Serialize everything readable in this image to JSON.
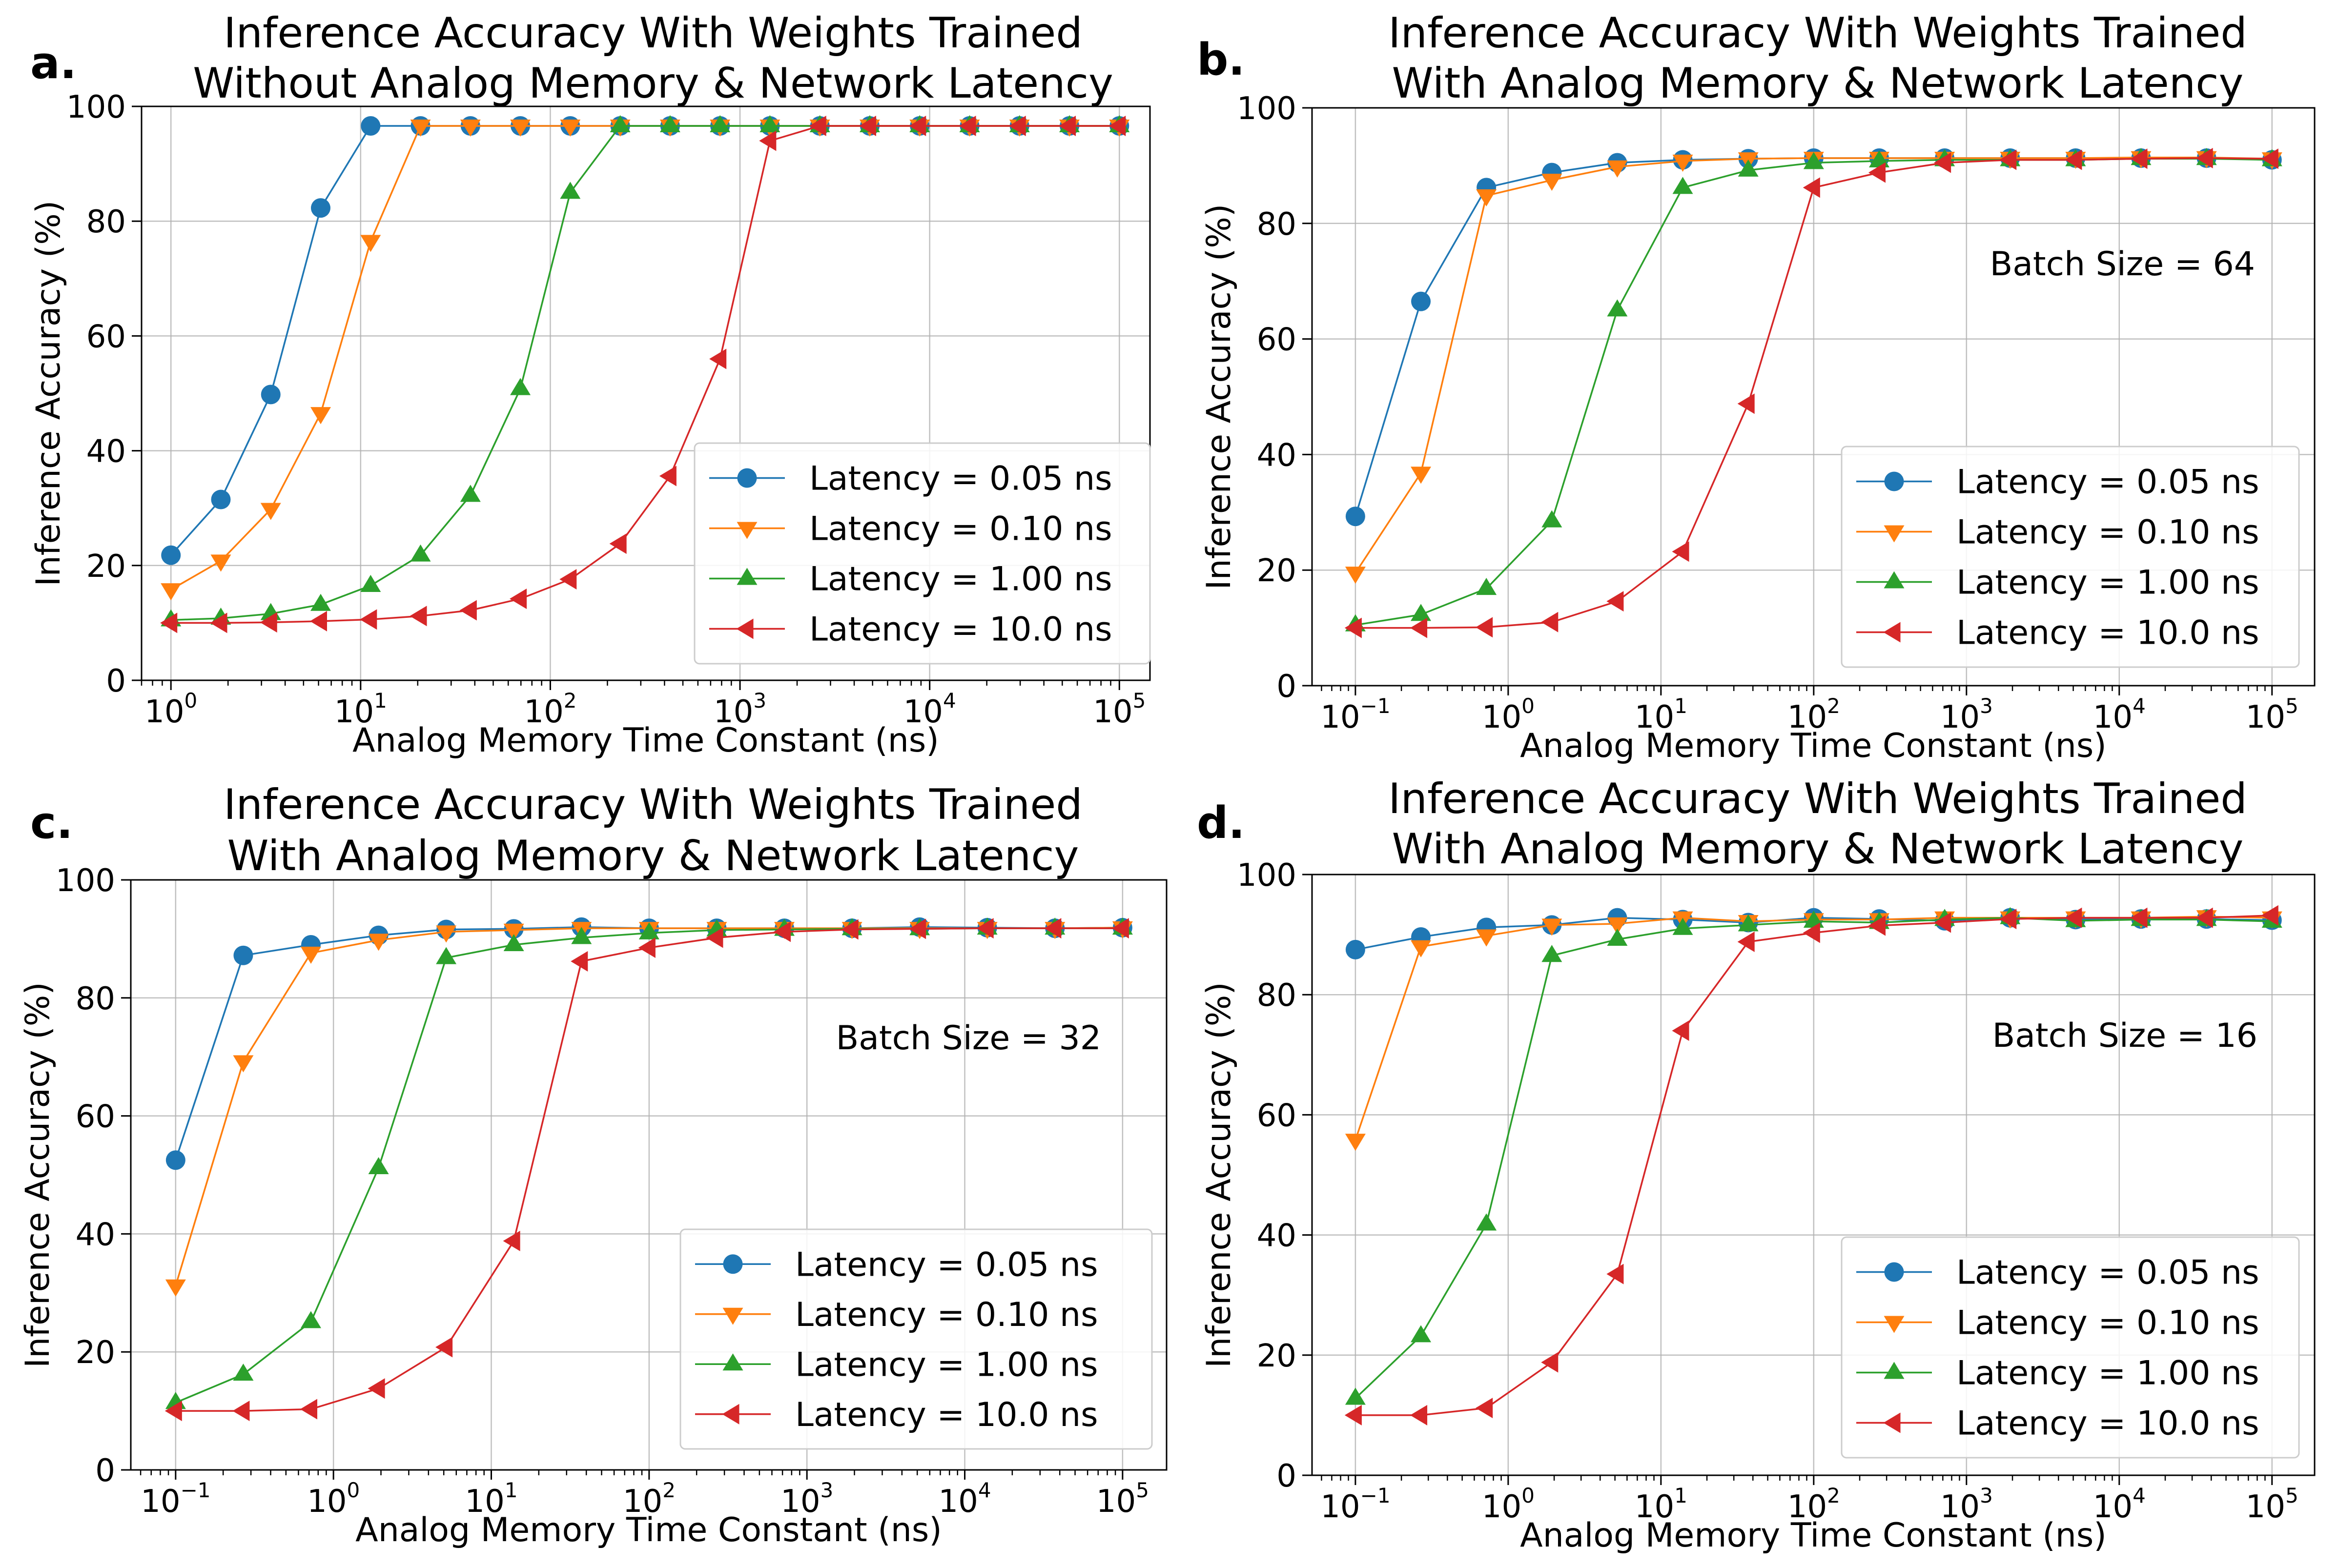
{
  "series_styles": [
    {
      "color": "#1f77b4",
      "marker": "circle"
    },
    {
      "color": "#ff7f0e",
      "marker": "triangle-down"
    },
    {
      "color": "#2ca02c",
      "marker": "triangle-up"
    },
    {
      "color": "#d62728",
      "marker": "triangle-left"
    }
  ],
  "chart_data": [
    {
      "type": "line",
      "panel_label": "a.",
      "title": [
        "Inference Accuracy With Weights Trained",
        "Without Analog Memory & Network Latency"
      ],
      "xlabel": "Analog Memory Time Constant (ns)",
      "ylabel": "Inference Accuracy (%)",
      "xscale": "log",
      "xlim": [
        0.7,
        145000.0
      ],
      "ylim": [
        0,
        100
      ],
      "xticks": [
        {
          "base": "10",
          "exp": "0"
        },
        {
          "base": "10",
          "exp": "1"
        },
        {
          "base": "10",
          "exp": "2"
        },
        {
          "base": "10",
          "exp": "3"
        },
        {
          "base": "10",
          "exp": "4"
        },
        {
          "base": "10",
          "exp": "5"
        }
      ],
      "yticks": [
        "0",
        "20",
        "40",
        "60",
        "80",
        "100"
      ],
      "grid": true,
      "legend_position": "lower right",
      "annotation": "",
      "x": [
        1,
        1.833,
        3.36,
        6.158,
        11.29,
        20.69,
        37.93,
        69.52,
        127.4,
        233.6,
        428.1,
        784.8,
        1438,
        2637,
        4833,
        8859,
        16240,
        29760,
        54560,
        100000
      ],
      "series": [
        {
          "name": "Latency = 0.05 ns",
          "values": [
            21.8,
            31.5,
            49.8,
            82.3,
            96.6,
            96.6,
            96.6,
            96.6,
            96.6,
            96.6,
            96.6,
            96.6,
            96.6,
            96.6,
            96.6,
            96.6,
            96.6,
            96.6,
            96.6,
            96.6
          ]
        },
        {
          "name": "Latency = 0.10 ns",
          "values": [
            15.8,
            20.8,
            29.8,
            46.5,
            76.5,
            96.6,
            96.6,
            96.6,
            96.6,
            96.6,
            96.6,
            96.6,
            96.6,
            96.6,
            96.6,
            96.6,
            96.6,
            96.6,
            96.6,
            96.6
          ]
        },
        {
          "name": "Latency = 1.00 ns",
          "values": [
            10.5,
            10.8,
            11.6,
            13.2,
            16.5,
            21.8,
            32.2,
            50.8,
            85.0,
            96.6,
            96.6,
            96.6,
            96.6,
            96.6,
            96.6,
            96.6,
            96.6,
            96.6,
            96.6,
            96.6
          ]
        },
        {
          "name": "Latency = 10.0 ns",
          "values": [
            10.0,
            10.0,
            10.1,
            10.3,
            10.6,
            11.2,
            12.2,
            14.2,
            17.6,
            23.8,
            35.6,
            56.0,
            94.0,
            96.6,
            96.6,
            96.6,
            96.6,
            96.6,
            96.6,
            96.6
          ]
        }
      ]
    },
    {
      "type": "line",
      "panel_label": "b.",
      "title": [
        "Inference Accuracy With Weights Trained",
        "With Analog Memory & Network Latency"
      ],
      "xlabel": "Analog Memory Time Constant (ns)",
      "ylabel": "Inference Accuracy (%)",
      "xscale": "log",
      "xlim": [
        0.052,
        190000.0
      ],
      "ylim": [
        0,
        100
      ],
      "xticks": [
        {
          "base": "10",
          "exp": "−1"
        },
        {
          "base": "10",
          "exp": "0"
        },
        {
          "base": "10",
          "exp": "1"
        },
        {
          "base": "10",
          "exp": "2"
        },
        {
          "base": "10",
          "exp": "3"
        },
        {
          "base": "10",
          "exp": "4"
        },
        {
          "base": "10",
          "exp": "5"
        }
      ],
      "yticks": [
        "0",
        "20",
        "40",
        "60",
        "80",
        "100"
      ],
      "grid": true,
      "legend_position": "lower right",
      "annotation": "Batch Size = 64",
      "x": [
        0.1,
        0.2683,
        0.7197,
        1.931,
        5.179,
        13.89,
        37.28,
        100,
        268.3,
        719.7,
        1931,
        5179,
        13890,
        37280,
        100000
      ],
      "series": [
        {
          "name": "Latency = 0.05 ns",
          "values": [
            29.3,
            66.5,
            86.2,
            88.8,
            90.5,
            91.0,
            91.2,
            91.3,
            91.3,
            91.3,
            91.3,
            91.3,
            91.3,
            91.3,
            91.0
          ]
        },
        {
          "name": "Latency = 0.10 ns",
          "values": [
            19.5,
            36.8,
            84.8,
            87.5,
            89.8,
            90.8,
            91.2,
            91.3,
            91.3,
            91.3,
            91.3,
            91.3,
            91.4,
            91.4,
            91.2
          ]
        },
        {
          "name": "Latency = 1.00 ns",
          "values": [
            10.5,
            12.3,
            16.8,
            28.5,
            65.0,
            86.2,
            89.2,
            90.5,
            90.8,
            91.0,
            91.0,
            91.0,
            91.2,
            91.2,
            91.0
          ]
        },
        {
          "name": "Latency = 10.0 ns",
          "values": [
            10.0,
            10.0,
            10.1,
            11.0,
            14.6,
            23.2,
            48.8,
            86.2,
            88.8,
            90.5,
            91.0,
            91.0,
            91.2,
            91.3,
            91.2
          ]
        }
      ]
    },
    {
      "type": "line",
      "panel_label": "c.",
      "title": [
        "Inference Accuracy With Weights Trained",
        "With Analog Memory & Network Latency"
      ],
      "xlabel": "Analog Memory Time Constant (ns)",
      "ylabel": "Inference Accuracy (%)",
      "xscale": "log",
      "xlim": [
        0.052,
        190000.0
      ],
      "ylim": [
        0,
        100
      ],
      "xticks": [
        {
          "base": "10",
          "exp": "−1"
        },
        {
          "base": "10",
          "exp": "0"
        },
        {
          "base": "10",
          "exp": "1"
        },
        {
          "base": "10",
          "exp": "2"
        },
        {
          "base": "10",
          "exp": "3"
        },
        {
          "base": "10",
          "exp": "4"
        },
        {
          "base": "10",
          "exp": "5"
        }
      ],
      "yticks": [
        "0",
        "20",
        "40",
        "60",
        "80",
        "100"
      ],
      "grid": true,
      "legend_position": "lower right",
      "annotation": "Batch Size = 32",
      "x": [
        0.1,
        0.2683,
        0.7197,
        1.931,
        5.179,
        13.89,
        37.28,
        100,
        268.3,
        719.7,
        1931,
        5179,
        13890,
        37280,
        100000
      ],
      "series": [
        {
          "name": "Latency = 0.05 ns",
          "values": [
            52.5,
            87.2,
            89.0,
            90.6,
            91.6,
            91.7,
            92.0,
            91.8,
            91.8,
            91.8,
            91.8,
            92.0,
            91.9,
            91.8,
            91.9
          ]
        },
        {
          "name": "Latency = 0.10 ns",
          "values": [
            31.2,
            69.2,
            87.6,
            89.8,
            91.2,
            91.5,
            91.8,
            91.8,
            91.8,
            91.8,
            91.8,
            91.8,
            91.8,
            91.8,
            91.9
          ]
        },
        {
          "name": "Latency = 1.00 ns",
          "values": [
            11.4,
            16.2,
            25.1,
            51.2,
            86.8,
            89.0,
            90.2,
            91.0,
            91.5,
            91.6,
            91.7,
            91.7,
            91.8,
            91.8,
            91.8
          ]
        },
        {
          "name": "Latency = 10.0 ns",
          "values": [
            10.0,
            10.0,
            10.3,
            13.8,
            20.8,
            38.8,
            86.2,
            88.5,
            90.2,
            91.2,
            91.6,
            91.7,
            91.8,
            91.8,
            91.8
          ]
        }
      ]
    },
    {
      "type": "line",
      "panel_label": "d.",
      "title": [
        "Inference Accuracy With Weights Trained",
        "With Analog Memory & Network Latency"
      ],
      "xlabel": "Analog Memory Time Constant (ns)",
      "ylabel": "Inference Accuracy (%)",
      "xscale": "log",
      "xlim": [
        0.052,
        190000.0
      ],
      "ylim": [
        0,
        100
      ],
      "xticks": [
        {
          "base": "10",
          "exp": "−1"
        },
        {
          "base": "10",
          "exp": "0"
        },
        {
          "base": "10",
          "exp": "1"
        },
        {
          "base": "10",
          "exp": "2"
        },
        {
          "base": "10",
          "exp": "3"
        },
        {
          "base": "10",
          "exp": "4"
        },
        {
          "base": "10",
          "exp": "5"
        }
      ],
      "yticks": [
        "0",
        "20",
        "40",
        "60",
        "80",
        "100"
      ],
      "grid": true,
      "legend_position": "lower right",
      "annotation": "Batch Size = 16",
      "x": [
        0.1,
        0.2683,
        0.7197,
        1.931,
        5.179,
        13.89,
        37.28,
        100,
        268.3,
        719.7,
        1931,
        5179,
        13890,
        37280,
        100000
      ],
      "series": [
        {
          "name": "Latency = 0.05 ns",
          "values": [
            87.5,
            89.6,
            91.2,
            91.6,
            92.8,
            92.5,
            92.0,
            92.8,
            92.6,
            92.3,
            92.8,
            92.5,
            92.6,
            92.6,
            92.4
          ]
        },
        {
          "name": "Latency = 0.10 ns",
          "values": [
            55.8,
            88.0,
            89.8,
            91.6,
            91.8,
            92.8,
            92.2,
            92.5,
            92.5,
            92.8,
            92.8,
            92.8,
            92.8,
            93.0,
            92.8
          ]
        },
        {
          "name": "Latency = 1.00 ns",
          "values": [
            12.8,
            23.2,
            41.8,
            86.5,
            89.2,
            91.0,
            91.6,
            92.2,
            92.0,
            92.5,
            92.8,
            92.3,
            92.5,
            92.5,
            92.2
          ]
        },
        {
          "name": "Latency = 10.0 ns",
          "values": [
            10.0,
            10.0,
            11.2,
            18.8,
            33.5,
            74.0,
            88.8,
            90.3,
            91.5,
            92.0,
            92.6,
            92.8,
            92.8,
            92.8,
            93.2
          ]
        }
      ]
    }
  ]
}
